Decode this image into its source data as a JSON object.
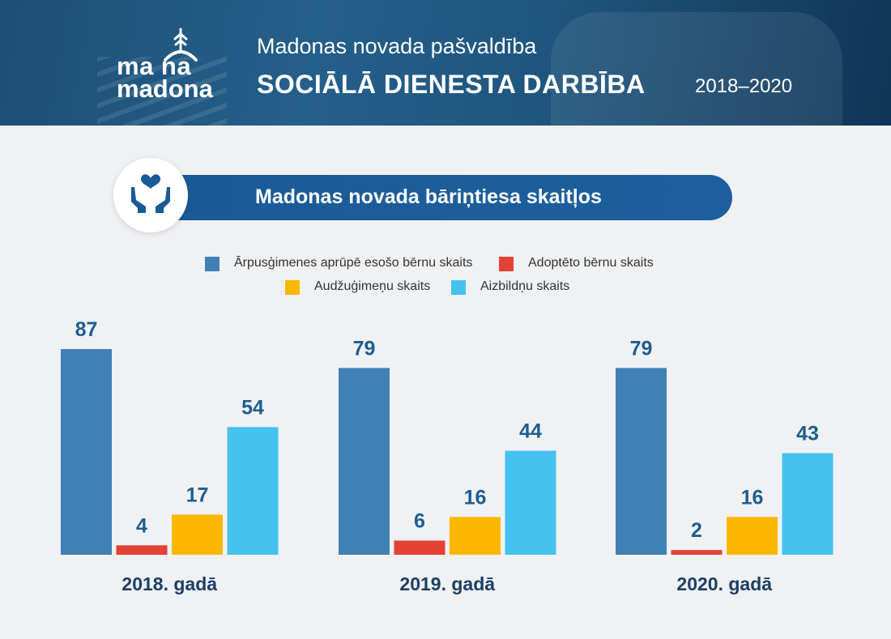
{
  "header": {
    "logo_line1": "ma  na",
    "logo_line2": "madona",
    "subtitle": "Madonas novada pašvaldība",
    "title": "SOCIĀLĀ DIENESTA DARBĪBA",
    "years": "2018–2020"
  },
  "section": {
    "title": "Madonas novada bāriņtiesa skaitļos",
    "icon": "heart-hands-icon"
  },
  "colors": {
    "header_bg": "#1d4f76",
    "pill_bg": "#1a5a96",
    "series": [
      "#3f81b6",
      "#e34234",
      "#fbb800",
      "#45c2ef"
    ]
  },
  "chart_data": {
    "type": "bar",
    "categories": [
      "2018. gadā",
      "2019. gadā",
      "2020. gadā"
    ],
    "series": [
      {
        "name": "Ārpusģimenes aprūpē esošo bērnu skaits",
        "values": [
          87,
          79,
          79
        ]
      },
      {
        "name": "Adoptēto bērnu skaits",
        "values": [
          4,
          6,
          2
        ]
      },
      {
        "name": "Audžuģimeņu skaits",
        "values": [
          17,
          16,
          16
        ]
      },
      {
        "name": "Aizbildņu skaits",
        "values": [
          54,
          44,
          43
        ]
      }
    ],
    "ylim": [
      0,
      87
    ],
    "legend": "top",
    "grid": false
  }
}
